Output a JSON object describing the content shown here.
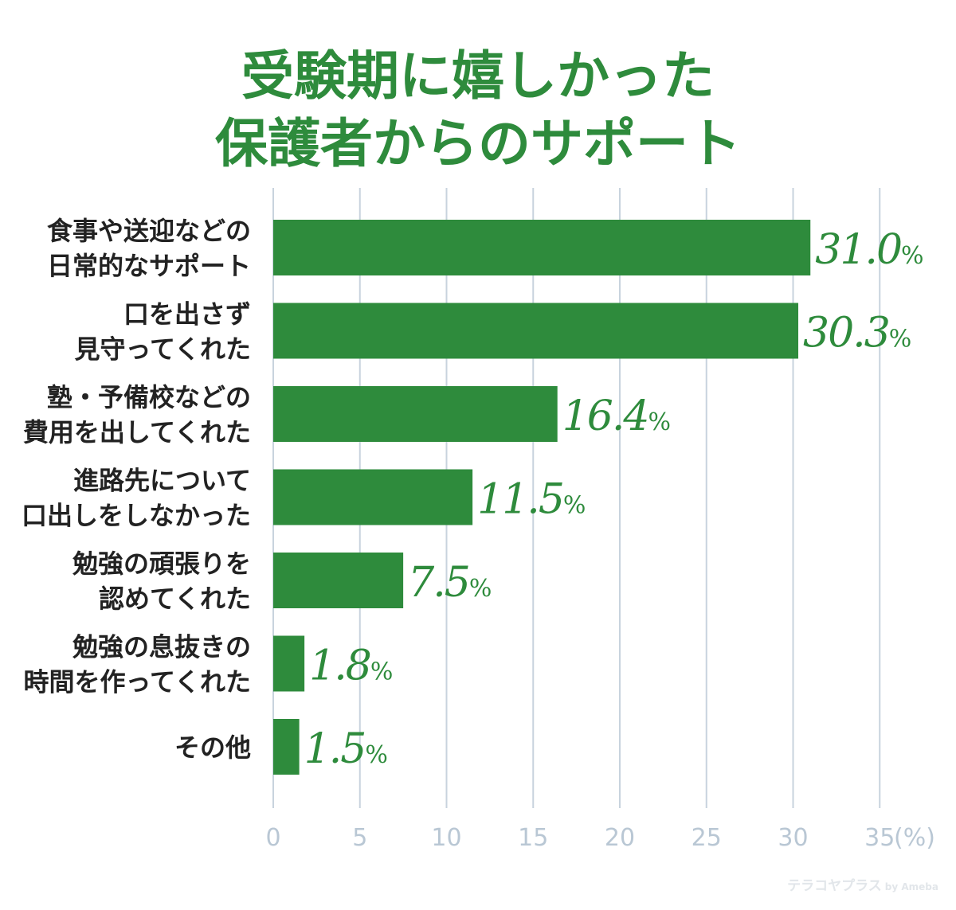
{
  "chart_data": {
    "type": "bar",
    "orientation": "horizontal",
    "title_lines": [
      "受験期に嬉しかった",
      "保護者からのサポート"
    ],
    "categories": [
      [
        "食事や送迎などの",
        "日常的なサポート"
      ],
      [
        "口を出さず",
        "見守ってくれた"
      ],
      [
        "塾・予備校などの",
        "費用を出してくれた"
      ],
      [
        "進路先について",
        "口出しをしなかった"
      ],
      [
        "勉強の頑張りを",
        "認めてくれた"
      ],
      [
        "勉強の息抜きの",
        "時間を作ってくれた"
      ],
      [
        "その他"
      ]
    ],
    "values": [
      31.0,
      30.3,
      16.4,
      11.5,
      7.5,
      1.8,
      1.5
    ],
    "value_labels": [
      "31.0",
      "30.3",
      "16.4",
      "11.5",
      "7.5",
      "1.8",
      "1.5"
    ],
    "value_suffix": "%",
    "x_ticks": [
      "0",
      "5",
      "10",
      "15",
      "20",
      "25",
      "30",
      "35"
    ],
    "x_tick_values": [
      0,
      5,
      10,
      15,
      20,
      25,
      30,
      35
    ],
    "x_unit": "(%)",
    "xlim": [
      0,
      35
    ],
    "grid": true,
    "colors": {
      "bar": "#2e8b3c",
      "title": "#2e8b3c",
      "value_label": "#2e8b3c",
      "grid": "#c8d3de",
      "tick": "#b9c7d4",
      "category_text": "#222222"
    }
  },
  "watermark": {
    "text": "テラコヤプラス",
    "suffix": "by Ameba"
  }
}
